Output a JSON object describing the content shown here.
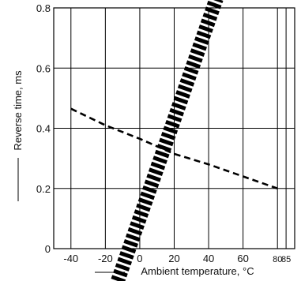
{
  "chart_data": {
    "type": "line",
    "title": "",
    "xlabel": "Ambient temperature, °C",
    "ylabel": "Reverse time, ms",
    "xlim": [
      -50,
      90
    ],
    "ylim": [
      0,
      0.8
    ],
    "x_ticks": [
      -40,
      -20,
      0,
      20,
      40,
      60,
      80,
      85
    ],
    "x_tick_labels": [
      "-40",
      "-20",
      "0",
      "20",
      "40",
      "60",
      "80",
      "85"
    ],
    "y_ticks": [
      0,
      0.2,
      0.4,
      0.6,
      0.8
    ],
    "y_tick_labels": [
      "0",
      "0.2",
      "0.4",
      "0.6",
      "0.8"
    ],
    "grid": true,
    "series": [
      {
        "style": "dashed",
        "x": [
          -40,
          -20,
          0,
          20,
          40,
          60,
          80
        ],
        "y": [
          0.465,
          0.41,
          0.365,
          0.315,
          0.28,
          0.24,
          0.2
        ]
      }
    ]
  }
}
